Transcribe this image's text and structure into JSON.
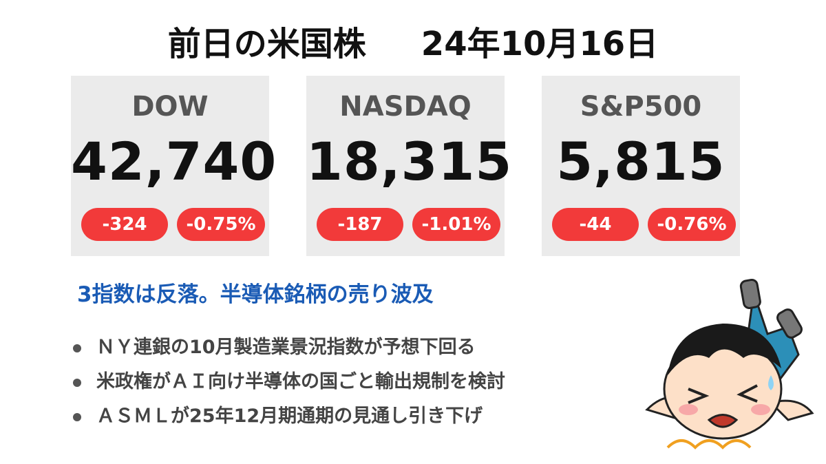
{
  "header": {
    "title": "前日の米国株",
    "date": "24年10月16日"
  },
  "cards": [
    {
      "name": "DOW",
      "value": "42,740",
      "change": "-324",
      "percent": "-0.75%"
    },
    {
      "name": "NASDAQ",
      "value": "18,315",
      "change": "-187",
      "percent": "-1.01%"
    },
    {
      "name": "S&P500",
      "value": "5,815",
      "change": "-44",
      "percent": "-0.76%"
    }
  ],
  "headline": "3指数は反落。半導体銘柄の売り波及",
  "bullets": [
    "ＮＹ連銀の10月製造業景況指数が予想下回る",
    "米政権がＡＩ向け半導体の国ごと輸出規制を検討",
    "ＡＳＭＬが25年12月期通期の見通し引き下げ"
  ]
}
